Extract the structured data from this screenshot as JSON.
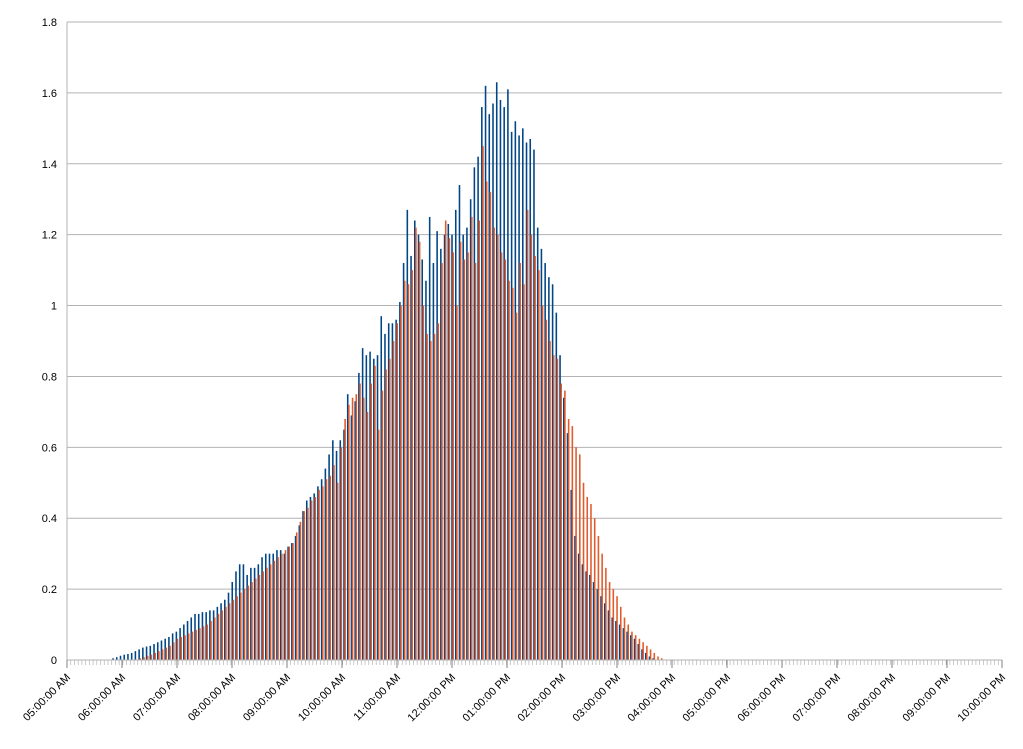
{
  "chart_data": {
    "type": "bar",
    "title": "",
    "xlabel": "",
    "ylabel": "",
    "ylim": [
      0,
      1.8
    ],
    "y_ticks": [
      "0",
      "0.2",
      "0.4",
      "0.6",
      "0.8",
      "1",
      "1.2",
      "1.4",
      "1.6",
      "1.8"
    ],
    "x_tick_labels": [
      "05:00:00 AM",
      "06:00:00 AM",
      "07:00:00 AM",
      "08:00:00 AM",
      "09:00:00 AM",
      "10:00:00 AM",
      "11:00:00 AM",
      "12:00:00 PM",
      "01:00:00 PM",
      "02:00:00 PM",
      "03:00:00 PM",
      "04:00:00 PM",
      "05:00:00 PM",
      "06:00:00 PM",
      "07:00:00 PM",
      "08:00:00 PM",
      "09:00:00 PM",
      "10:00:00 PM"
    ],
    "x_start": "05:00:00 AM",
    "x_end": "10:00:00 PM",
    "interval": "5 min",
    "grid": true,
    "legend": "none",
    "series": [
      {
        "color": "#004586",
        "values": [
          0,
          0,
          0,
          0,
          0,
          0,
          0,
          0,
          0,
          0,
          0,
          0,
          0.005,
          0.008,
          0.012,
          0.015,
          0.017,
          0.02,
          0.025,
          0.03,
          0.035,
          0.038,
          0.04,
          0.045,
          0.05,
          0.055,
          0.06,
          0.065,
          0.075,
          0.08,
          0.09,
          0.1,
          0.11,
          0.12,
          0.13,
          0.13,
          0.135,
          0.135,
          0.14,
          0.14,
          0.15,
          0.16,
          0.17,
          0.19,
          0.22,
          0.25,
          0.27,
          0.27,
          0.24,
          0.26,
          0.26,
          0.27,
          0.29,
          0.3,
          0.3,
          0.3,
          0.31,
          0.31,
          0.3,
          0.32,
          0.33,
          0.35,
          0.38,
          0.42,
          0.45,
          0.46,
          0.47,
          0.49,
          0.51,
          0.54,
          0.58,
          0.62,
          0.59,
          0.62,
          0.65,
          0.75,
          0.69,
          0.73,
          0.81,
          0.88,
          0.86,
          0.87,
          0.85,
          0.86,
          0.97,
          0.92,
          0.95,
          0.95,
          0.96,
          1.01,
          1.12,
          1.27,
          1.14,
          1.24,
          1.2,
          1.13,
          1.07,
          1.25,
          1.12,
          1.21,
          1.16,
          1.2,
          1.23,
          1.2,
          1.27,
          1.34,
          1.2,
          1.22,
          1.3,
          1.39,
          1.42,
          1.56,
          1.62,
          1.54,
          1.57,
          1.63,
          1.58,
          1.56,
          1.61,
          1.49,
          1.52,
          1.48,
          1.5,
          1.46,
          1.47,
          1.44,
          1.22,
          1.16,
          1.12,
          1.08,
          1.06,
          0.98,
          0.86,
          0.74,
          0.64,
          0.48,
          0.35,
          0.3,
          0.27,
          0.25,
          0.24,
          0.22,
          0.2,
          0.18,
          0.16,
          0.14,
          0.12,
          0.11,
          0.1,
          0.09,
          0.08,
          0.07,
          0.06,
          0.045,
          0.03,
          0.02,
          0.01,
          0.005,
          0,
          0,
          0,
          0,
          0,
          0,
          0,
          0,
          0,
          0,
          0,
          0,
          0,
          0,
          0,
          0,
          0,
          0,
          0,
          0,
          0,
          0,
          0,
          0,
          0,
          0,
          0,
          0,
          0,
          0,
          0,
          0,
          0,
          0,
          0,
          0,
          0,
          0,
          0,
          0,
          0,
          0,
          0,
          0,
          0,
          0,
          0,
          0,
          0,
          0,
          0,
          0,
          0,
          0,
          0,
          0,
          0,
          0,
          0,
          0,
          0,
          0,
          0,
          0,
          0,
          0,
          0,
          0,
          0,
          0,
          0,
          0,
          0,
          0,
          0,
          0,
          0,
          0,
          0,
          0,
          0,
          0,
          0,
          0,
          0,
          0,
          0,
          0,
          0,
          0,
          0,
          0,
          0
        ]
      },
      {
        "color": "#e05a2b",
        "values": [
          0,
          0,
          0,
          0,
          0,
          0,
          0,
          0,
          0,
          0,
          0,
          0,
          0,
          0,
          0,
          0,
          0,
          0,
          0,
          0.005,
          0.008,
          0.012,
          0.015,
          0.02,
          0.025,
          0.03,
          0.035,
          0.04,
          0.05,
          0.06,
          0.065,
          0.07,
          0.075,
          0.08,
          0.085,
          0.09,
          0.095,
          0.1,
          0.11,
          0.12,
          0.13,
          0.14,
          0.15,
          0.16,
          0.17,
          0.18,
          0.19,
          0.2,
          0.21,
          0.22,
          0.23,
          0.24,
          0.25,
          0.26,
          0.27,
          0.28,
          0.29,
          0.3,
          0.31,
          0.32,
          0.33,
          0.36,
          0.39,
          0.42,
          0.43,
          0.45,
          0.46,
          0.48,
          0.49,
          0.51,
          0.52,
          0.55,
          0.5,
          0.6,
          0.68,
          0.72,
          0.74,
          0.75,
          0.78,
          0.74,
          0.7,
          0.78,
          0.83,
          0.65,
          0.76,
          0.82,
          0.85,
          0.9,
          0.95,
          1.0,
          1.07,
          1.06,
          1.1,
          1.22,
          1.18,
          1.0,
          0.92,
          0.9,
          0.92,
          0.95,
          1.12,
          1.24,
          1.19,
          1.15,
          1.0,
          1.18,
          1.13,
          1.15,
          1.25,
          1.12,
          1.24,
          1.45,
          1.35,
          1.32,
          1.22,
          1.2,
          1.15,
          1.13,
          1.07,
          1.05,
          0.98,
          1.12,
          1.06,
          1.27,
          1.2,
          1.14,
          1.1,
          1.0,
          0.96,
          0.9,
          0.86,
          0.85,
          0.78,
          0.76,
          0.68,
          0.66,
          0.6,
          0.58,
          0.5,
          0.46,
          0.44,
          0.4,
          0.35,
          0.3,
          0.26,
          0.22,
          0.2,
          0.18,
          0.15,
          0.12,
          0.1,
          0.08,
          0.07,
          0.06,
          0.05,
          0.04,
          0.03,
          0.02,
          0.01,
          0.005,
          0,
          0,
          0,
          0,
          0,
          0,
          0,
          0,
          0,
          0,
          0,
          0,
          0,
          0,
          0,
          0,
          0,
          0,
          0,
          0,
          0,
          0,
          0,
          0,
          0,
          0,
          0,
          0,
          0,
          0,
          0,
          0,
          0,
          0,
          0,
          0,
          0,
          0,
          0,
          0,
          0,
          0,
          0,
          0,
          0,
          0,
          0,
          0,
          0,
          0,
          0,
          0,
          0,
          0,
          0,
          0,
          0,
          0,
          0,
          0,
          0,
          0,
          0,
          0,
          0,
          0,
          0,
          0,
          0,
          0,
          0,
          0,
          0,
          0,
          0,
          0,
          0,
          0,
          0,
          0,
          0,
          0,
          0,
          0,
          0,
          0,
          0,
          0,
          0,
          0
        ]
      }
    ]
  }
}
